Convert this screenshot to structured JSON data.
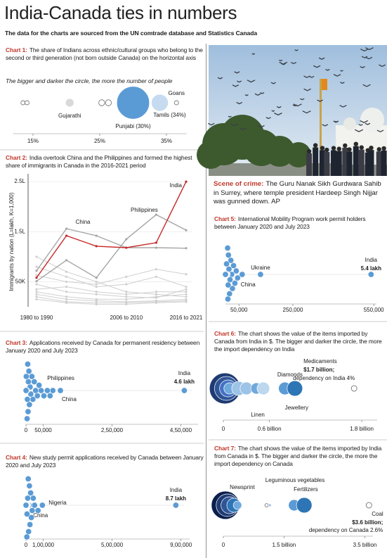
{
  "header": {
    "title": "India-Canada ties in numbers",
    "subtitle": "The data for the charts are sourced from the UN comtrade database and Statistics Canada"
  },
  "photo_caption": {
    "lead": "Scene of crime:",
    "text": "The Guru Nanak Sikh Gurdwara Sahib in Surrey, where temple president Hardeep Singh Nijjar was gunned down. AP"
  },
  "chart_data": [
    {
      "type": "bubble",
      "label": "Chart 1:",
      "title": "The share of Indians across ethnic/cultural groups who belong to the second or third generation (not born outside Canada) on the horizontal axis",
      "subtitle": "The bigger and darker the circle, the more the number of people",
      "categories": [
        null,
        null,
        "Gujarathi",
        null,
        null,
        "Punjabi (30%)",
        "Tamils (34%)",
        "Goans"
      ],
      "values": [
        13.5,
        14.1,
        20.5,
        25.3,
        26.3,
        30,
        34,
        36.5
      ],
      "sizes": [
        1,
        1,
        4,
        2,
        2,
        60,
        16,
        1
      ],
      "colors": [
        "#ffffff",
        "#ffffff",
        "#d9d9d9",
        "#ffffff",
        "#ffffff",
        "#5b9bd5",
        "#c6dbef",
        "#ffffff"
      ],
      "xlim": [
        12,
        38
      ],
      "xticks": [
        {
          "value": 15,
          "label": "15%"
        },
        {
          "value": 25,
          "label": "25%"
        },
        {
          "value": 35,
          "label": "35%"
        }
      ]
    },
    {
      "type": "line",
      "label": "Chart 2:",
      "title": "India overtook China and the Philippines and formed the highest share of immigrants in Canada in the 2016-2021 period",
      "ylabel": "Immigrants by nation (L=lakh, K=1,000)",
      "categories": [
        "1980 to 1990",
        null,
        null,
        "2006 to 2010",
        null,
        "2016 to 2021"
      ],
      "series": [
        {
          "values": [
            100000,
            70000,
            50000,
            30000,
            25000,
            20000
          ],
          "color": "#cfcfcf"
        },
        {
          "values": [
            80000,
            60000,
            40000,
            45000,
            60000,
            40000
          ],
          "color": "#cfcfcf"
        },
        {
          "values": [
            63000,
            50000,
            45000,
            60000,
            75000,
            65000
          ],
          "color": "#cfcfcf"
        },
        {
          "values": [
            45000,
            30000,
            25000,
            20000,
            18000,
            35000
          ],
          "color": "#cfcfcf"
        },
        {
          "values": [
            35000,
            40000,
            30000,
            25000,
            30000,
            30000
          ],
          "color": "#cfcfcf"
        },
        {
          "values": [
            30000,
            20000,
            15000,
            15000,
            20000,
            25000
          ],
          "color": "#cfcfcf"
        },
        {
          "values": [
            25000,
            15000,
            12000,
            10000,
            12000,
            15000
          ],
          "color": "#cfcfcf"
        },
        {
          "values": [
            20000,
            10000,
            8000,
            8000,
            10000,
            12000
          ],
          "color": "#cfcfcf"
        },
        {
          "values": [
            15000,
            8000,
            5000,
            5000,
            8000,
            10000
          ],
          "color": "#cfcfcf"
        },
        {
          "name": "Philippines",
          "values": [
            51000,
            93000,
            58000,
            135000,
            184000,
            153000
          ],
          "color": "#a6a6a6"
        },
        {
          "name": "China",
          "values": [
            72000,
            156000,
            142000,
            118000,
            118000,
            117000
          ],
          "color": "#a6a6a6"
        },
        {
          "name": "India",
          "values": [
            58000,
            142000,
            121000,
            118000,
            128000,
            250000
          ],
          "color": "#c62828"
        }
      ],
      "ylim": [
        0,
        260000
      ],
      "yticks": [
        {
          "value": 50000,
          "label": "50K"
        },
        {
          "value": 150000,
          "label": "1.5L"
        },
        {
          "value": 250000,
          "label": "2.5L"
        }
      ],
      "grid": true
    },
    {
      "type": "strip",
      "label": "Chart 3:",
      "title": "Applications received by Canada for permanent residency between January 2020 and July 2023",
      "categories": [
        "India",
        "Philippines",
        "China",
        null,
        null,
        null,
        null,
        null,
        null,
        null,
        null,
        null,
        null,
        null,
        null,
        null,
        null,
        null,
        null,
        null,
        null,
        null,
        null,
        null,
        null,
        null,
        null,
        null,
        null,
        null
      ],
      "values": [
        460000,
        78000,
        100000,
        70000,
        62000,
        52000,
        44000,
        38000,
        33000,
        28000,
        24000,
        20000,
        17000,
        14000,
        12000,
        10000,
        8500,
        7000,
        6000,
        5000,
        4000,
        3200,
        2500,
        2000,
        1500,
        1100,
        800,
        500,
        300,
        150
      ],
      "value_labels": [
        "4.6 lakh",
        null,
        null,
        null,
        null,
        null,
        null,
        null,
        null,
        null,
        null,
        null,
        null,
        null,
        null,
        null,
        null,
        null,
        null,
        null,
        null,
        null,
        null,
        null,
        null,
        null,
        null,
        null,
        null,
        null
      ],
      "color": "#5b9bd5",
      "xlim": [
        0,
        500000
      ],
      "xticks": [
        0,
        {
          "value": 50000,
          "label": "50,000"
        },
        {
          "value": 250000,
          "label": "2,50,000"
        },
        {
          "value": 450000,
          "label": "4,50,000"
        }
      ]
    },
    {
      "type": "strip",
      "label": "Chart 4:",
      "title": "New study permit applications received by Canada between January 2020 and July 2023",
      "categories": [
        "India",
        "Nigeria",
        "China",
        null,
        null,
        null,
        null,
        null,
        null,
        null,
        null,
        null,
        null,
        null,
        null,
        null,
        null,
        null,
        null,
        null,
        null,
        null,
        null,
        null,
        null,
        null,
        null,
        null,
        null,
        null
      ],
      "values": [
        870000,
        95000,
        50000,
        70000,
        42000,
        36000,
        31000,
        27000,
        23000,
        20000,
        17000,
        15000,
        13000,
        11000,
        10000,
        9000,
        8000,
        7000,
        6000,
        5000,
        4200,
        3500,
        3000,
        2500,
        2000,
        1500,
        1000,
        600,
        300,
        100
      ],
      "value_labels": [
        "8.7 lakh",
        null,
        null,
        null,
        null,
        null,
        null,
        null,
        null,
        null,
        null,
        null,
        null,
        null,
        null,
        null,
        null,
        null,
        null,
        null,
        null,
        null,
        null,
        null,
        null,
        null,
        null,
        null,
        null,
        null
      ],
      "color": "#5b9bd5",
      "xlim": [
        0,
        950000
      ],
      "xticks": [
        0,
        {
          "value": 100000,
          "label": "1,00,000"
        },
        {
          "value": 500000,
          "label": "5,00,000"
        },
        {
          "value": 900000,
          "label": "9,00,000"
        }
      ]
    },
    {
      "type": "strip",
      "label": "Chart 5:",
      "title": "International Mobility Program work permit holders between January 2020 and July 2023",
      "categories": [
        "India",
        "Ukraine",
        "China",
        null,
        null,
        null,
        null,
        null,
        null,
        null,
        null,
        null,
        null,
        null,
        null,
        null,
        null,
        null,
        null,
        null,
        null,
        null,
        null,
        null,
        null,
        null,
        null,
        null,
        null,
        null
      ],
      "values": [
        540000,
        130000,
        62000,
        45000,
        40000,
        35000,
        30000,
        26000,
        23000,
        20000,
        17000,
        15000,
        13000,
        11000,
        10000,
        9000,
        8000,
        7000,
        6000,
        5000,
        4000,
        3200,
        2500,
        2000,
        1500,
        1000,
        700,
        400,
        200,
        100
      ],
      "value_labels": [
        "5.4 lakh",
        null,
        null,
        null,
        null,
        null,
        null,
        null,
        null,
        null,
        null,
        null,
        null,
        null,
        null,
        null,
        null,
        null,
        null,
        null,
        null,
        null,
        null,
        null,
        null,
        null,
        null,
        null,
        null,
        null
      ],
      "color": "#5b9bd5",
      "xlim": [
        0,
        560000
      ],
      "xticks": [
        {
          "value": 50000,
          "label": "50,000"
        },
        {
          "value": 250000,
          "label": "250,000"
        },
        {
          "value": 550000,
          "label": "550,000"
        }
      ]
    },
    {
      "type": "bubble",
      "label": "Chart 6:",
      "title": "The chart shows the value of the items imported by Canada from India in $. The bigger and darker the circle, the more the import dependency on India",
      "categories": [
        null,
        null,
        null,
        null,
        null,
        null,
        "Linen",
        null,
        "Jewellery",
        "Diamonds",
        "Medicaments"
      ],
      "values": [
        20000000,
        40000000,
        60000000,
        80000000,
        200000000,
        300000000,
        430000000,
        520000000,
        800000000,
        930000000,
        1700000000
      ],
      "value_labels": [
        null,
        null,
        null,
        null,
        null,
        null,
        null,
        null,
        null,
        null,
        "$1.7 billion;"
      ],
      "notes": [
        null,
        null,
        null,
        null,
        null,
        null,
        null,
        null,
        null,
        null,
        "dependency on India 4%"
      ],
      "sizes": [
        484,
        289,
        144,
        64,
        100,
        81,
        64,
        81,
        81,
        121,
        16
      ],
      "colors": [
        "#1f3b73",
        "#2f5597",
        "#4472c4",
        "#6fa8dc",
        "#9dc3e6",
        "#9dc3e6",
        "#6fa8dc",
        "#bdd7ee",
        "#5b9bd5",
        "#2e75b6",
        "#ffffff"
      ],
      "xlim": [
        0,
        2000000000
      ],
      "xticks": [
        0,
        {
          "value": 600000000,
          "label": "0.6 billion"
        },
        {
          "value": 1800000000,
          "label": "1.8 billion"
        }
      ]
    },
    {
      "type": "bubble",
      "label": "Chart 7:",
      "title": "The chart shows the value of the items imported by India from Canada in $. The bigger and darker the circle, the more the import dependency on Canada",
      "categories": [
        null,
        null,
        null,
        "Newsprint",
        null,
        null,
        null,
        "Leguminous vegetables",
        "Fertilizers",
        "Coal"
      ],
      "values": [
        50000000,
        100000000,
        150000000,
        260000000,
        350000000,
        1070000000,
        1150000000,
        1750000000,
        2000000000,
        3600000000
      ],
      "value_labels": [
        null,
        null,
        null,
        null,
        null,
        null,
        null,
        null,
        null,
        "$3.6 billion;"
      ],
      "notes": [
        null,
        null,
        null,
        null,
        null,
        null,
        null,
        null,
        null,
        "dependency on Canada 2.6%"
      ],
      "sizes": [
        400,
        256,
        144,
        100,
        36,
        6,
        4,
        64,
        121,
        16
      ],
      "colors": [
        "#0b1f4d",
        "#1f3b73",
        "#2f5597",
        "#2e75b6",
        "#6fa8dc",
        "#ffffff",
        "#9dc3e6",
        "#5b9bd5",
        "#2e75b6",
        "#ffffff"
      ],
      "xlim": [
        0,
        3700000000
      ],
      "xticks": [
        0,
        {
          "value": 1500000000,
          "label": "1.5 billion"
        },
        {
          "value": 3500000000,
          "label": "3.5 billion"
        }
      ]
    }
  ]
}
